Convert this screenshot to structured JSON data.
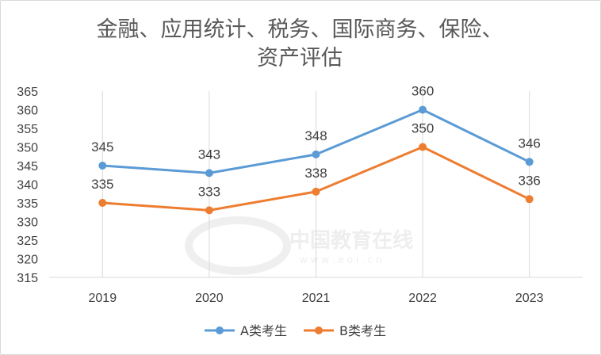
{
  "chart_data": {
    "type": "line",
    "title_lines": [
      "金融、应用统计、税务、国际商务、保险、",
      "资产评估"
    ],
    "categories": [
      "2019",
      "2020",
      "2021",
      "2022",
      "2023"
    ],
    "series": [
      {
        "name": "A类考生",
        "values": [
          345,
          343,
          348,
          360,
          346
        ],
        "color": "#5b9bd5"
      },
      {
        "name": "B类考生",
        "values": [
          335,
          333,
          338,
          350,
          336
        ],
        "color": "#ed7d31"
      }
    ],
    "yticks": [
      315,
      320,
      325,
      330,
      335,
      340,
      345,
      350,
      355,
      360,
      365
    ],
    "ylim": [
      315,
      365
    ],
    "grid": "vertical",
    "legend": "bottom"
  },
  "watermark": {
    "cn": "中国教育在线",
    "en": "w w w . e o l . c n"
  }
}
